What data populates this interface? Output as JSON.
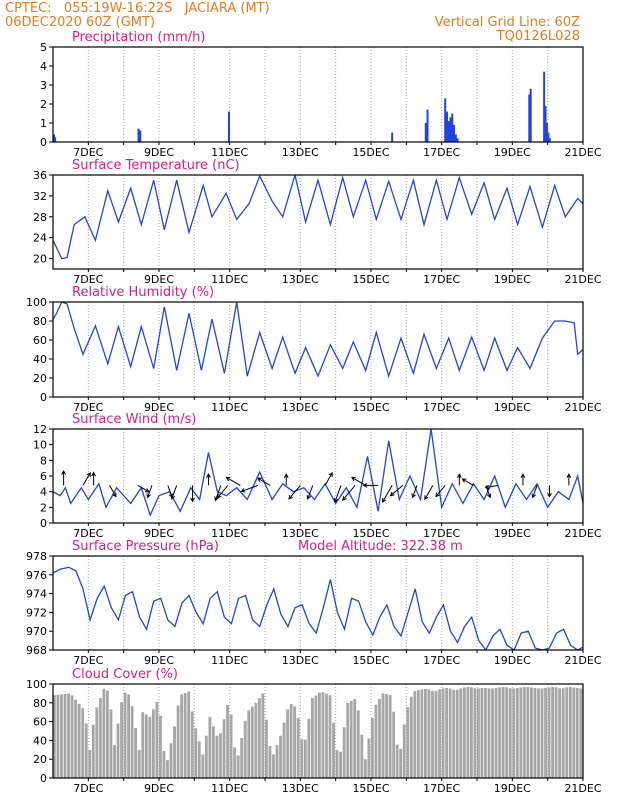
{
  "header": {
    "line1_left": "CPTEC:   055:19W-16:22S   JACIARA (MT)",
    "line2_left": "06DEC2020 60Z (GMT)",
    "line1_right": "Vertical Grid Line: 60Z",
    "line2_right": "TQ0126L028"
  },
  "colors": {
    "header": "#e87a1e",
    "title": "#d81b8c",
    "series": "#2244dd",
    "cloud": "#a6a6a6",
    "grid": "#aaaaaa",
    "arrow": "#000000"
  },
  "x_tick_labels": [
    "7DEC",
    "9DEC",
    "11DEC",
    "13DEC",
    "15DEC",
    "17DEC",
    "19DEC",
    "21DEC"
  ],
  "chart_data": [
    {
      "id": "precip",
      "type": "bar",
      "title": "Precipitation (mm/h)",
      "xlim": [
        0,
        15
      ],
      "ylim": [
        0,
        5
      ],
      "yticks": [
        0,
        1,
        2,
        3,
        4,
        5
      ],
      "x": [
        0.03,
        0.06,
        2.42,
        2.47,
        4.98,
        9.6,
        10.55,
        10.6,
        11.1,
        11.15,
        11.2,
        11.25,
        11.3,
        11.35,
        11.4,
        11.45,
        13.48,
        13.52,
        13.9,
        13.94,
        13.98,
        14.02,
        14.06
      ],
      "values": [
        0.4,
        0.25,
        0.7,
        0.6,
        1.6,
        0.5,
        1.0,
        1.7,
        2.3,
        1.6,
        1.1,
        1.3,
        1.5,
        0.9,
        0.4,
        0.2,
        2.5,
        2.8,
        3.7,
        1.9,
        1.0,
        0.5,
        0.2
      ]
    },
    {
      "id": "temp",
      "type": "line",
      "title": "Surface Temperature (nC)",
      "xlim": [
        0,
        15
      ],
      "ylim": [
        18,
        36
      ],
      "yticks": [
        20,
        24,
        28,
        32,
        36
      ],
      "x": [
        0,
        0.25,
        0.4,
        0.6,
        0.9,
        1.2,
        1.55,
        1.85,
        2.2,
        2.5,
        2.85,
        3.15,
        3.5,
        3.85,
        4.25,
        4.5,
        4.9,
        5.2,
        5.55,
        5.85,
        6.2,
        6.5,
        6.85,
        7.15,
        7.5,
        7.85,
        8.2,
        8.5,
        8.85,
        9.15,
        9.5,
        9.85,
        10.2,
        10.5,
        10.85,
        11.15,
        11.5,
        11.85,
        12.2,
        12.5,
        12.85,
        13.15,
        13.5,
        13.85,
        14.2,
        14.5,
        14.85,
        15
      ],
      "values": [
        23.5,
        20,
        20.2,
        26.5,
        28,
        23.5,
        33,
        27,
        33.5,
        26.5,
        35,
        25.5,
        35,
        25,
        34,
        28,
        32.5,
        27.5,
        30.5,
        35.8,
        31,
        28,
        36,
        27,
        35,
        26.5,
        35.5,
        28,
        35,
        27.5,
        34.8,
        27.5,
        35,
        26.5,
        35,
        27.5,
        35.5,
        28.5,
        34.5,
        27.5,
        33.5,
        26.5,
        33.8,
        26,
        34,
        28,
        31.5,
        30.5
      ]
    },
    {
      "id": "rh",
      "type": "line",
      "title": "Relative Humidity (%)",
      "xlim": [
        0,
        15
      ],
      "ylim": [
        0,
        100
      ],
      "yticks": [
        0,
        20,
        40,
        60,
        80,
        100
      ],
      "x": [
        0,
        0.1,
        0.25,
        0.4,
        0.6,
        0.85,
        1.2,
        1.55,
        1.85,
        2.2,
        2.5,
        2.85,
        3.15,
        3.5,
        3.85,
        4.2,
        4.5,
        4.85,
        5.2,
        5.5,
        5.85,
        6.2,
        6.5,
        6.85,
        7.15,
        7.5,
        7.85,
        8.2,
        8.5,
        8.85,
        9.15,
        9.5,
        9.85,
        10.2,
        10.5,
        10.85,
        11.2,
        11.5,
        11.85,
        12.2,
        12.5,
        12.85,
        13.15,
        13.5,
        13.85,
        14.2,
        14.5,
        14.75,
        14.85,
        15
      ],
      "values": [
        82,
        88,
        100,
        98,
        72,
        45,
        75,
        35,
        74,
        32,
        74,
        30,
        95,
        28,
        88,
        28,
        82,
        25,
        100,
        22,
        68,
        30,
        63,
        25,
        52,
        22,
        55,
        30,
        58,
        28,
        68,
        22,
        62,
        25,
        66,
        30,
        62,
        28,
        63,
        28,
        62,
        28,
        52,
        30,
        62,
        80,
        80,
        78,
        45,
        50
      ]
    },
    {
      "id": "wind",
      "type": "line",
      "title": "Surface Wind (m/s)",
      "xlim": [
        0,
        15
      ],
      "ylim": [
        0,
        12
      ],
      "yticks": [
        0,
        2,
        4,
        6,
        8,
        10,
        12
      ],
      "x": [
        0,
        0.2,
        0.35,
        0.5,
        0.8,
        1.0,
        1.3,
        1.5,
        1.8,
        2.2,
        2.5,
        2.75,
        3.0,
        3.3,
        3.6,
        3.9,
        4.15,
        4.4,
        4.65,
        4.9,
        5.2,
        5.5,
        5.85,
        6.2,
        6.5,
        6.8,
        7.1,
        7.4,
        7.7,
        8.0,
        8.3,
        8.6,
        8.9,
        9.2,
        9.5,
        9.8,
        10.1,
        10.4,
        10.7,
        11.0,
        11.3,
        11.6,
        11.9,
        12.2,
        12.5,
        12.8,
        13.1,
        13.4,
        13.7,
        14.0,
        14.3,
        14.6,
        14.85,
        15
      ],
      "values": [
        4,
        3.5,
        4.5,
        2.5,
        4.5,
        3,
        5,
        2,
        4.5,
        2.5,
        4.5,
        1,
        3.5,
        4,
        1.5,
        4.5,
        3,
        9,
        4,
        3.5,
        4.5,
        3,
        6.5,
        3,
        5,
        4,
        4.5,
        3,
        5,
        2.5,
        4.5,
        2,
        8.5,
        1.5,
        10.5,
        3,
        6,
        3,
        12,
        2,
        5,
        2.5,
        5,
        3,
        6,
        2,
        5,
        3,
        5,
        2,
        4,
        3,
        6,
        2.5
      ],
      "arrows": [
        {
          "x": 0.3,
          "dir": 0,
          "speed": 4
        },
        {
          "x": 0.85,
          "dir": 30,
          "speed": 4
        },
        {
          "x": 1.15,
          "dir": 0,
          "speed": 3
        },
        {
          "x": 1.6,
          "dir": 150,
          "speed": 3
        },
        {
          "x": 2.4,
          "dir": 120,
          "speed": 3
        },
        {
          "x": 2.8,
          "dir": 200,
          "speed": 3
        },
        {
          "x": 3.25,
          "dir": 160,
          "speed": 3
        },
        {
          "x": 3.5,
          "dir": 200,
          "speed": 4
        },
        {
          "x": 3.95,
          "dir": 180,
          "speed": 5
        },
        {
          "x": 4.4,
          "dir": 0,
          "speed": 2
        },
        {
          "x": 4.75,
          "dir": 200,
          "speed": 5
        },
        {
          "x": 4.95,
          "dir": 220,
          "speed": 5
        },
        {
          "x": 5.3,
          "dir": 300,
          "speed": 5
        },
        {
          "x": 5.8,
          "dir": 250,
          "speed": 6
        },
        {
          "x": 6.15,
          "dir": 300,
          "speed": 4
        },
        {
          "x": 6.6,
          "dir": 0,
          "speed": 2
        },
        {
          "x": 7.0,
          "dir": 220,
          "speed": 6
        },
        {
          "x": 7.35,
          "dir": 200,
          "speed": 4
        },
        {
          "x": 7.7,
          "dir": 30,
          "speed": 4
        },
        {
          "x": 8.15,
          "dir": 200,
          "speed": 6
        },
        {
          "x": 8.55,
          "dir": 220,
          "speed": 7
        },
        {
          "x": 8.85,
          "dir": 300,
          "speed": 5
        },
        {
          "x": 9.2,
          "dir": 270,
          "speed": 4
        },
        {
          "x": 9.6,
          "dir": 210,
          "speed": 7
        },
        {
          "x": 9.9,
          "dir": 230,
          "speed": 5
        },
        {
          "x": 10.3,
          "dir": 200,
          "speed": 3
        },
        {
          "x": 10.75,
          "dir": 210,
          "speed": 5
        },
        {
          "x": 11.1,
          "dir": 220,
          "speed": 4
        },
        {
          "x": 11.5,
          "dir": 0,
          "speed": 2
        },
        {
          "x": 11.9,
          "dir": 300,
          "speed": 3
        },
        {
          "x": 12.25,
          "dir": 160,
          "speed": 3
        },
        {
          "x": 12.6,
          "dir": 260,
          "speed": 3
        },
        {
          "x": 13.3,
          "dir": 0,
          "speed": 2
        },
        {
          "x": 13.7,
          "dir": 200,
          "speed": 3
        },
        {
          "x": 14.05,
          "dir": 180,
          "speed": 2
        },
        {
          "x": 14.6,
          "dir": 0,
          "speed": 2
        }
      ]
    },
    {
      "id": "pres",
      "type": "line",
      "title": "Surface Pressure (hPa)",
      "subtitle": "Model Altitude: 322.38 m",
      "xlim": [
        0,
        15
      ],
      "ylim": [
        968,
        978
      ],
      "yticks": [
        968,
        970,
        972,
        974,
        976,
        978
      ],
      "x": [
        0,
        0.2,
        0.45,
        0.65,
        0.85,
        1.05,
        1.25,
        1.45,
        1.65,
        1.85,
        2.05,
        2.25,
        2.45,
        2.65,
        2.85,
        3.05,
        3.25,
        3.45,
        3.65,
        3.85,
        4.05,
        4.25,
        4.45,
        4.65,
        4.85,
        5.05,
        5.25,
        5.45,
        5.65,
        5.85,
        6.05,
        6.25,
        6.45,
        6.65,
        6.85,
        7.05,
        7.25,
        7.45,
        7.65,
        7.85,
        8.05,
        8.25,
        8.45,
        8.65,
        8.85,
        9.05,
        9.25,
        9.45,
        9.65,
        9.85,
        10.05,
        10.25,
        10.45,
        10.65,
        10.85,
        11.05,
        11.25,
        11.45,
        11.65,
        11.85,
        12.05,
        12.25,
        12.45,
        12.65,
        12.85,
        13.05,
        13.25,
        13.45,
        13.65,
        13.85,
        14.05,
        14.25,
        14.45,
        14.65,
        14.85,
        15
      ],
      "values": [
        976.2,
        976.6,
        976.8,
        976.4,
        974.5,
        971.2,
        973.5,
        974.8,
        972.5,
        971.2,
        973.8,
        974.2,
        971.5,
        970.2,
        973.2,
        973.5,
        971.2,
        970.5,
        973,
        973.8,
        972,
        970.8,
        973.5,
        974.2,
        971.5,
        970.8,
        973.5,
        973.8,
        971.2,
        970.5,
        972.8,
        974.5,
        971.8,
        970.5,
        972.5,
        972.8,
        970.8,
        969.8,
        972.5,
        975.5,
        972,
        970.2,
        973.5,
        973.2,
        971,
        969.6,
        971.5,
        972.8,
        970.5,
        969.5,
        972,
        974.5,
        971,
        969.8,
        971.5,
        972.8,
        970,
        968.8,
        970.5,
        971.5,
        969,
        968,
        969.5,
        970.2,
        968.5,
        968,
        969.8,
        970,
        968.2,
        968,
        968.2,
        969.8,
        970.2,
        968.5,
        968,
        968.3
      ]
    },
    {
      "id": "cloud",
      "type": "area",
      "title": "Cloud Cover (%)",
      "xlim": [
        0,
        15
      ],
      "ylim": [
        0,
        100
      ],
      "yticks": [
        0,
        20,
        40,
        60,
        80,
        100
      ],
      "x": [
        0,
        0.5,
        0.9,
        1.05,
        1.2,
        1.45,
        1.6,
        1.75,
        2.0,
        2.2,
        2.45,
        2.55,
        2.75,
        3.0,
        3.2,
        3.45,
        3.6,
        3.85,
        4.0,
        4.25,
        4.45,
        4.7,
        5.0,
        5.2,
        5.5,
        5.75,
        5.95,
        6.2,
        6.45,
        6.7,
        6.9,
        7.1,
        7.35,
        7.6,
        7.85,
        8.1,
        8.35,
        8.6,
        8.85,
        9.1,
        9.35,
        9.6,
        9.8,
        10.0,
        10.2,
        10.4,
        10.6,
        10.8,
        11.0,
        11.2,
        11.4,
        11.6,
        11.8,
        12.0,
        12.2,
        12.4,
        12.6,
        12.8,
        13.0,
        13.2,
        13.4,
        13.6,
        13.8,
        14.0,
        14.2,
        14.4,
        14.6,
        14.8,
        15
      ],
      "values": [
        88,
        90,
        72,
        30,
        70,
        95,
        92,
        35,
        92,
        88,
        30,
        70,
        65,
        85,
        10,
        55,
        88,
        92,
        60,
        25,
        65,
        40,
        85,
        15,
        70,
        80,
        90,
        20,
        45,
        80,
        75,
        30,
        85,
        92,
        88,
        15,
        80,
        85,
        20,
        75,
        90,
        88,
        18,
        70,
        92,
        94,
        95,
        92,
        95,
        96,
        93,
        96,
        97,
        95,
        96,
        95,
        96,
        97,
        95,
        96,
        97,
        96,
        95,
        96,
        97,
        95,
        97,
        96,
        95
      ]
    }
  ]
}
